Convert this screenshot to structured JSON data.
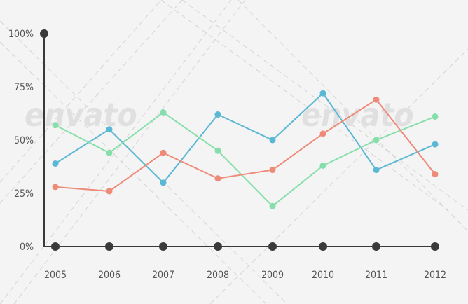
{
  "watermark": {
    "text": "envato"
  },
  "chart_data": {
    "type": "line",
    "title": "",
    "xlabel": "",
    "ylabel": "",
    "x": [
      "2005",
      "2006",
      "2007",
      "2008",
      "2009",
      "2010",
      "2011",
      "2012"
    ],
    "yticks": [
      "0%",
      "25%",
      "50%",
      "75%",
      "100%"
    ],
    "ylim": [
      0,
      100
    ],
    "grid": false,
    "legend": "none",
    "series": [
      {
        "color": "#5bb8d4",
        "values": [
          39,
          55,
          30,
          62,
          50,
          72,
          36,
          48
        ]
      },
      {
        "color": "#86dfab",
        "values": [
          57,
          44,
          63,
          45,
          19,
          38,
          50,
          61
        ]
      },
      {
        "color": "#ee8a78",
        "values": [
          28,
          26,
          44,
          32,
          36,
          53,
          69,
          34
        ]
      }
    ],
    "axis_color": "#3a3a3a"
  }
}
